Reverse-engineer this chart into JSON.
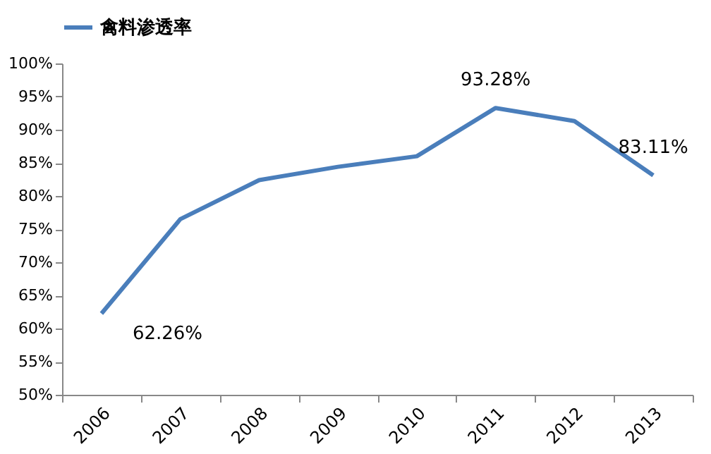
{
  "chart_data": {
    "type": "line",
    "categories": [
      "2006",
      "2007",
      "2008",
      "2009",
      "2010",
      "2011",
      "2012",
      "2013"
    ],
    "series": [
      {
        "name": "禽料渗透率",
        "color": "#4a7ebb",
        "values": [
          62.26,
          76.5,
          82.4,
          84.4,
          86.0,
          93.28,
          91.3,
          83.11
        ]
      }
    ],
    "ylim": [
      50,
      100
    ],
    "yticks": [
      {
        "value": 50,
        "label": "50%"
      },
      {
        "value": 55,
        "label": "55%"
      },
      {
        "value": 60,
        "label": "60%"
      },
      {
        "value": 65,
        "label": "65%"
      },
      {
        "value": 70,
        "label": "70%"
      },
      {
        "value": 75,
        "label": "75%"
      },
      {
        "value": 80,
        "label": "80%"
      },
      {
        "value": 85,
        "label": "85%"
      },
      {
        "value": 90,
        "label": "90%"
      },
      {
        "value": 95,
        "label": "95%"
      },
      {
        "value": 100,
        "label": "100%"
      }
    ],
    "annotations": [
      {
        "text": "62.26%",
        "x": "2006",
        "y": 62.26
      },
      {
        "text": "93.28%",
        "x": "2011",
        "y": 93.28
      },
      {
        "text": "83.11%",
        "x": "2013",
        "y": 83.11
      }
    ],
    "grid": false,
    "legend": "top",
    "marker": "none",
    "line_style": "solid"
  }
}
